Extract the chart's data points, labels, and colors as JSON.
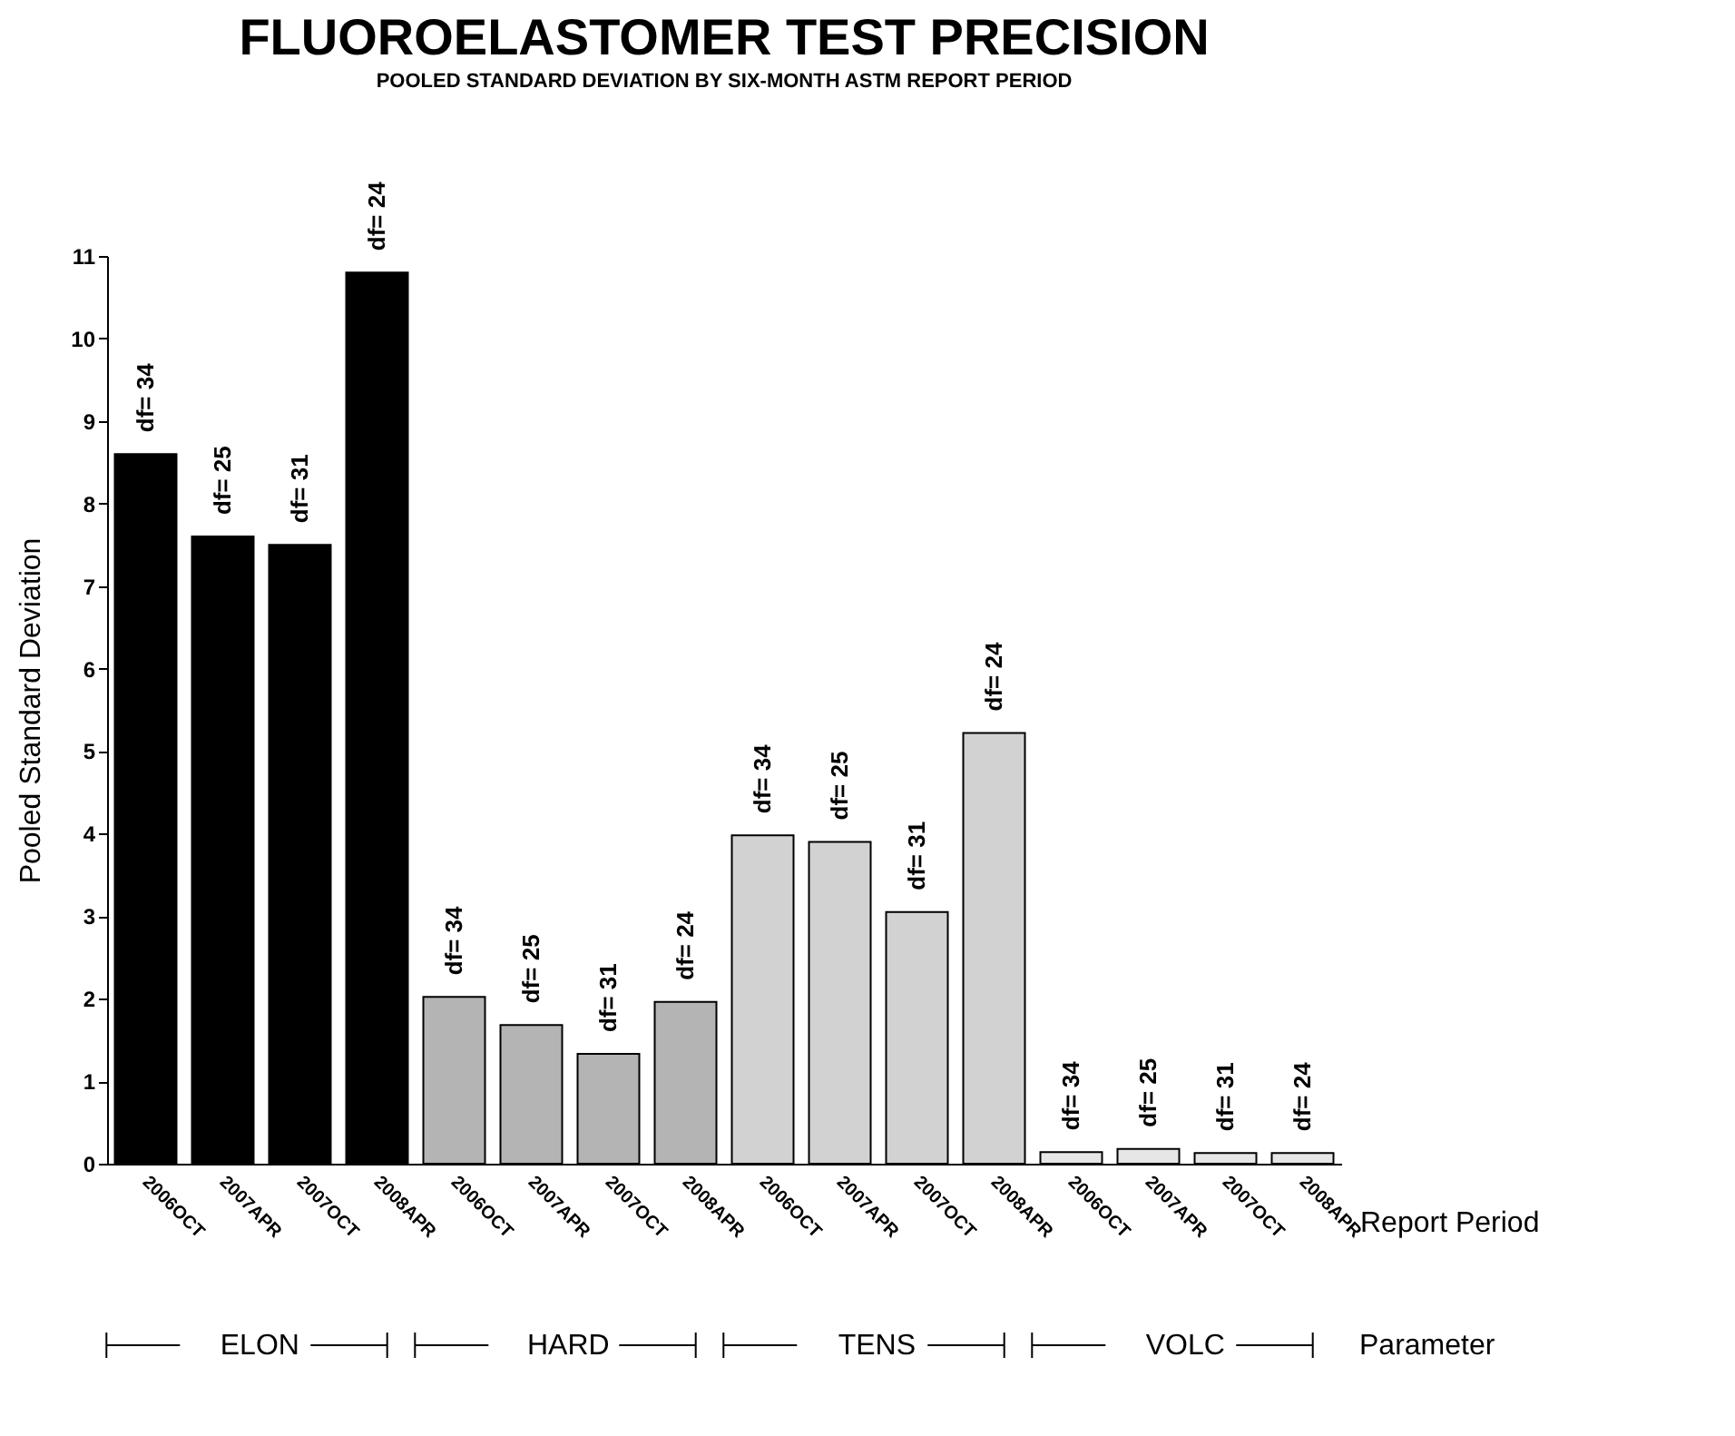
{
  "chart_data": {
    "type": "bar",
    "title": "FLUOROELASTOMER TEST PRECISION",
    "subtitle": "POOLED STANDARD DEVIATION BY SIX-MONTH ASTM REPORT PERIOD",
    "xlabel": "Report Period",
    "ylabel": "Pooled Standard Deviation",
    "legend_title": "Parameter",
    "categories": [
      "2006OCT",
      "2007APR",
      "2007OCT",
      "2008APR",
      "2006OCT",
      "2007APR",
      "2007OCT",
      "2008APR",
      "2006OCT",
      "2007APR",
      "2007OCT",
      "2008APR",
      "2006OCT",
      "2007APR",
      "2007OCT",
      "2008APR"
    ],
    "series": [
      {
        "name": "ELON",
        "color": "#000000",
        "values": [
          8.6,
          7.6,
          7.5,
          10.8,
          null,
          null,
          null,
          null,
          null,
          null,
          null,
          null,
          null,
          null,
          null,
          null
        ]
      },
      {
        "name": "HARD",
        "color": "#b4b4b4",
        "values": [
          null,
          null,
          null,
          null,
          2.02,
          1.68,
          1.33,
          1.96,
          null,
          null,
          null,
          null,
          null,
          null,
          null,
          null
        ]
      },
      {
        "name": "TENS",
        "color": "#d2d2d2",
        "values": [
          null,
          null,
          null,
          null,
          null,
          null,
          null,
          null,
          3.98,
          3.9,
          3.05,
          5.22,
          null,
          null,
          null,
          null
        ]
      },
      {
        "name": "VOLC",
        "color": "#e6e6e6",
        "values": [
          null,
          null,
          null,
          null,
          null,
          null,
          null,
          null,
          null,
          null,
          null,
          null,
          0.14,
          0.18,
          0.13,
          0.13
        ]
      }
    ],
    "annotations": [
      "df= 34",
      "df= 25",
      "df= 31",
      "df= 24",
      "df= 34",
      "df= 25",
      "df= 31",
      "df= 24",
      "df= 34",
      "df= 25",
      "df= 31",
      "df= 24",
      "df= 34",
      "df= 25",
      "df= 31",
      "df= 24"
    ],
    "ylim": [
      0,
      11
    ],
    "yticks": [
      0,
      1,
      2,
      3,
      4,
      5,
      6,
      7,
      8,
      9,
      10,
      11
    ],
    "grid": false,
    "legend": "bottom"
  }
}
